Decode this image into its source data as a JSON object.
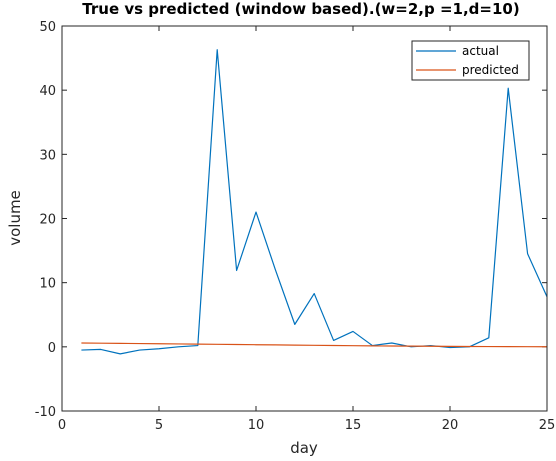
{
  "chart_data": {
    "type": "line",
    "title": "True vs predicted (window based).(w=2,p =1,d=10)",
    "xlabel": "day",
    "ylabel": "volume",
    "xlim": [
      0,
      25
    ],
    "ylim": [
      -10,
      50
    ],
    "xticks": [
      "0",
      "5",
      "10",
      "15",
      "20",
      "25"
    ],
    "yticks": [
      "-10",
      "0",
      "10",
      "20",
      "30",
      "40",
      "50"
    ],
    "grid": false,
    "legend_position": "top-right",
    "x": [
      1,
      2,
      3,
      4,
      5,
      6,
      7,
      8,
      9,
      10,
      11,
      12,
      13,
      14,
      15,
      16,
      17,
      18,
      19,
      20,
      21,
      22,
      23,
      24,
      25
    ],
    "series": [
      {
        "name": "actual",
        "color": "#0072bd",
        "values": [
          -0.5,
          -0.4,
          -1.1,
          -0.5,
          -0.3,
          0.0,
          0.2,
          46.3,
          11.9,
          21.0,
          12.0,
          3.5,
          8.3,
          1.0,
          2.4,
          0.2,
          0.6,
          0.0,
          0.2,
          -0.1,
          0.0,
          1.4,
          40.3,
          14.5,
          7.8
        ]
      },
      {
        "name": "predicted",
        "color": "#d95319",
        "values": [
          0.6,
          0.57,
          0.54,
          0.51,
          0.48,
          0.45,
          0.42,
          0.39,
          0.36,
          0.33,
          0.3,
          0.27,
          0.24,
          0.21,
          0.18,
          0.15,
          0.13,
          0.11,
          0.09,
          0.07,
          0.05,
          0.04,
          0.03,
          0.02,
          0.01
        ]
      }
    ]
  }
}
